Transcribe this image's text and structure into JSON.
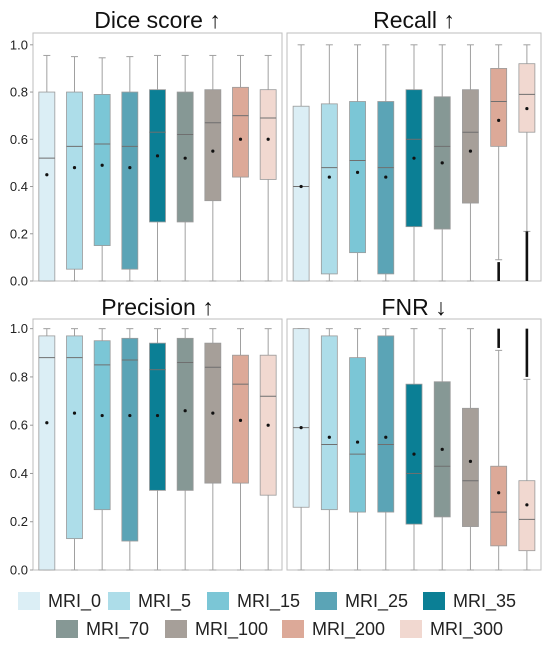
{
  "legend": {
    "row1": [
      {
        "label": "MRI_0",
        "color": "#dbeef5"
      },
      {
        "label": "MRI_5",
        "color": "#addde9"
      },
      {
        "label": "MRI_15",
        "color": "#7bc6d6"
      },
      {
        "label": "MRI_25",
        "color": "#5ba4b6"
      },
      {
        "label": "MRI_35",
        "color": "#0b7f95"
      }
    ],
    "row2": [
      {
        "label": "MRI_70",
        "color": "#869895"
      },
      {
        "label": "MRI_100",
        "color": "#a69f99"
      },
      {
        "label": "MRI_200",
        "color": "#dca998"
      },
      {
        "label": "MRI_300",
        "color": "#f1d8d0"
      }
    ]
  },
  "chart_data": [
    {
      "type": "box",
      "title": "Dice score ↑",
      "ylim": [
        0,
        1.05
      ],
      "yticks": [
        "0.0",
        "0.2",
        "0.4",
        "0.6",
        "0.8",
        "1.0"
      ],
      "series": [
        {
          "name": "MRI_0",
          "whisker_low": 0.0,
          "q1": 0.0,
          "median": 0.52,
          "q3": 0.8,
          "whisker_high": 0.955,
          "mean": 0.45
        },
        {
          "name": "MRI_5",
          "whisker_low": 0.0,
          "q1": 0.05,
          "median": 0.57,
          "q3": 0.8,
          "whisker_high": 0.95,
          "mean": 0.48
        },
        {
          "name": "MRI_15",
          "whisker_low": 0.0,
          "q1": 0.15,
          "median": 0.58,
          "q3": 0.79,
          "whisker_high": 0.945,
          "mean": 0.49
        },
        {
          "name": "MRI_25",
          "whisker_low": 0.0,
          "q1": 0.05,
          "median": 0.57,
          "q3": 0.8,
          "whisker_high": 0.95,
          "mean": 0.48
        },
        {
          "name": "MRI_35",
          "whisker_low": 0.0,
          "q1": 0.25,
          "median": 0.63,
          "q3": 0.81,
          "whisker_high": 0.955,
          "mean": 0.53
        },
        {
          "name": "MRI_70",
          "whisker_low": 0.0,
          "q1": 0.25,
          "median": 0.62,
          "q3": 0.8,
          "whisker_high": 0.955,
          "mean": 0.52
        },
        {
          "name": "MRI_100",
          "whisker_low": 0.0,
          "q1": 0.34,
          "median": 0.67,
          "q3": 0.81,
          "whisker_high": 0.955,
          "mean": 0.55
        },
        {
          "name": "MRI_200",
          "whisker_low": 0.0,
          "q1": 0.44,
          "median": 0.7,
          "q3": 0.82,
          "whisker_high": 0.955,
          "mean": 0.6
        },
        {
          "name": "MRI_300",
          "whisker_low": 0.0,
          "q1": 0.43,
          "median": 0.69,
          "q3": 0.81,
          "whisker_high": 0.955,
          "mean": 0.6
        }
      ]
    },
    {
      "type": "box",
      "title": "Recall ↑",
      "ylim": [
        0,
        1.05
      ],
      "yticks": [
        "0.0",
        "0.2",
        "0.4",
        "0.6",
        "0.8",
        "1.0"
      ],
      "series": [
        {
          "name": "MRI_0",
          "whisker_low": 0.0,
          "q1": 0.0,
          "median": 0.4,
          "q3": 0.74,
          "whisker_high": 1.0,
          "mean": 0.4
        },
        {
          "name": "MRI_5",
          "whisker_low": 0.0,
          "q1": 0.03,
          "median": 0.48,
          "q3": 0.75,
          "whisker_high": 1.0,
          "mean": 0.44
        },
        {
          "name": "MRI_15",
          "whisker_low": 0.0,
          "q1": 0.12,
          "median": 0.51,
          "q3": 0.76,
          "whisker_high": 1.0,
          "mean": 0.46
        },
        {
          "name": "MRI_25",
          "whisker_low": 0.0,
          "q1": 0.03,
          "median": 0.48,
          "q3": 0.76,
          "whisker_high": 1.0,
          "mean": 0.44
        },
        {
          "name": "MRI_35",
          "whisker_low": 0.0,
          "q1": 0.23,
          "median": 0.6,
          "q3": 0.81,
          "whisker_high": 1.0,
          "mean": 0.52
        },
        {
          "name": "MRI_70",
          "whisker_low": 0.0,
          "q1": 0.22,
          "median": 0.57,
          "q3": 0.78,
          "whisker_high": 1.0,
          "mean": 0.5
        },
        {
          "name": "MRI_100",
          "whisker_low": 0.0,
          "q1": 0.33,
          "median": 0.63,
          "q3": 0.81,
          "whisker_high": 1.0,
          "mean": 0.55
        },
        {
          "name": "MRI_200",
          "whisker_low": 0.09,
          "q1": 0.57,
          "median": 0.76,
          "q3": 0.9,
          "whisker_high": 1.0,
          "mean": 0.68,
          "outliers": [
            0.0,
            0.08
          ]
        },
        {
          "name": "MRI_300",
          "whisker_low": 0.21,
          "q1": 0.63,
          "median": 0.79,
          "q3": 0.92,
          "whisker_high": 1.0,
          "mean": 0.73,
          "outliers": [
            0.0,
            0.21
          ]
        }
      ]
    },
    {
      "type": "box",
      "title": "Precision ↑",
      "ylim": [
        0,
        1.04
      ],
      "yticks": [
        "0.0",
        "0.2",
        "0.4",
        "0.6",
        "0.8",
        "1.0"
      ],
      "series": [
        {
          "name": "MRI_0",
          "whisker_low": 0.0,
          "q1": 0.0,
          "median": 0.88,
          "q3": 0.97,
          "whisker_high": 1.0,
          "mean": 0.61
        },
        {
          "name": "MRI_5",
          "whisker_low": 0.0,
          "q1": 0.13,
          "median": 0.88,
          "q3": 0.97,
          "whisker_high": 1.0,
          "mean": 0.65
        },
        {
          "name": "MRI_15",
          "whisker_low": 0.0,
          "q1": 0.25,
          "median": 0.85,
          "q3": 0.95,
          "whisker_high": 1.0,
          "mean": 0.64
        },
        {
          "name": "MRI_25",
          "whisker_low": 0.0,
          "q1": 0.12,
          "median": 0.87,
          "q3": 0.96,
          "whisker_high": 1.0,
          "mean": 0.64
        },
        {
          "name": "MRI_35",
          "whisker_low": 0.0,
          "q1": 0.33,
          "median": 0.83,
          "q3": 0.94,
          "whisker_high": 1.0,
          "mean": 0.64
        },
        {
          "name": "MRI_70",
          "whisker_low": 0.0,
          "q1": 0.33,
          "median": 0.86,
          "q3": 0.96,
          "whisker_high": 1.0,
          "mean": 0.66
        },
        {
          "name": "MRI_100",
          "whisker_low": 0.0,
          "q1": 0.36,
          "median": 0.84,
          "q3": 0.94,
          "whisker_high": 1.0,
          "mean": 0.65
        },
        {
          "name": "MRI_200",
          "whisker_low": 0.0,
          "q1": 0.36,
          "median": 0.77,
          "q3": 0.89,
          "whisker_high": 1.0,
          "mean": 0.62
        },
        {
          "name": "MRI_300",
          "whisker_low": 0.0,
          "q1": 0.31,
          "median": 0.72,
          "q3": 0.89,
          "whisker_high": 1.0,
          "mean": 0.6
        }
      ]
    },
    {
      "type": "box",
      "title": "FNR ↓",
      "ylim": [
        0,
        1.04
      ],
      "yticks": [
        "0.0",
        "0.2",
        "0.4",
        "0.6",
        "0.8",
        "1.0"
      ],
      "series": [
        {
          "name": "MRI_0",
          "whisker_low": 0.0,
          "q1": 0.26,
          "median": 0.59,
          "q3": 1.0,
          "whisker_high": 1.0,
          "mean": 0.59
        },
        {
          "name": "MRI_5",
          "whisker_low": 0.0,
          "q1": 0.25,
          "median": 0.52,
          "q3": 0.97,
          "whisker_high": 1.0,
          "mean": 0.55
        },
        {
          "name": "MRI_15",
          "whisker_low": 0.0,
          "q1": 0.24,
          "median": 0.48,
          "q3": 0.88,
          "whisker_high": 1.0,
          "mean": 0.53
        },
        {
          "name": "MRI_25",
          "whisker_low": 0.0,
          "q1": 0.24,
          "median": 0.52,
          "q3": 0.97,
          "whisker_high": 1.0,
          "mean": 0.55
        },
        {
          "name": "MRI_35",
          "whisker_low": 0.0,
          "q1": 0.19,
          "median": 0.4,
          "q3": 0.77,
          "whisker_high": 1.0,
          "mean": 0.48
        },
        {
          "name": "MRI_70",
          "whisker_low": 0.0,
          "q1": 0.22,
          "median": 0.43,
          "q3": 0.78,
          "whisker_high": 1.0,
          "mean": 0.5
        },
        {
          "name": "MRI_100",
          "whisker_low": 0.0,
          "q1": 0.18,
          "median": 0.37,
          "q3": 0.67,
          "whisker_high": 1.0,
          "mean": 0.45
        },
        {
          "name": "MRI_200",
          "whisker_low": 0.0,
          "q1": 0.1,
          "median": 0.24,
          "q3": 0.43,
          "whisker_high": 0.91,
          "mean": 0.32,
          "outliers": [
            0.92,
            1.0
          ]
        },
        {
          "name": "MRI_300",
          "whisker_low": 0.0,
          "q1": 0.08,
          "median": 0.21,
          "q3": 0.37,
          "whisker_high": 0.79,
          "mean": 0.27,
          "outliers": [
            0.8,
            1.0
          ]
        }
      ]
    }
  ]
}
